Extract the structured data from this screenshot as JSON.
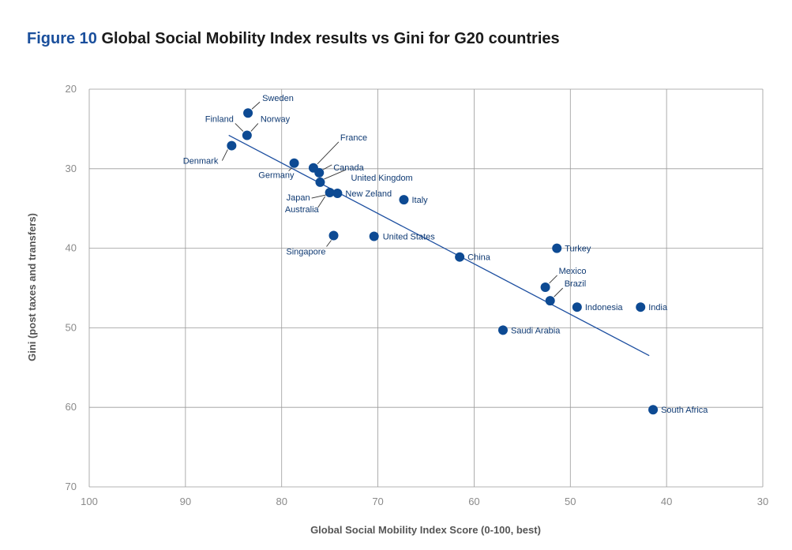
{
  "title": {
    "figure_label": "Figure 10",
    "text": "Global Social Mobility Index results vs Gini for G20 countries"
  },
  "chart_data": {
    "type": "scatter",
    "xlabel": "Global Social Mobility Index Score (0-100, best)",
    "ylabel": "Gini (post taxes and transfers)",
    "xlim": [
      100,
      30
    ],
    "ylim": [
      20,
      70
    ],
    "x_inverted": true,
    "y_inverted": true,
    "grid": true,
    "x_ticks": [
      "100",
      "90",
      "80",
      "70",
      "60",
      "50",
      "40",
      "30"
    ],
    "y_ticks": [
      "20",
      "30",
      "40",
      "50",
      "60",
      "70"
    ],
    "marker_color": "#0d4a93",
    "trendline_color": "#1d4fa0",
    "trendline": {
      "x": [
        85.5,
        41.8
      ],
      "y": [
        25.8,
        53.5
      ]
    },
    "points": [
      {
        "label": "Sweden",
        "x": 83.5,
        "y": 23.0
      },
      {
        "label": "Norway",
        "x": 83.6,
        "y": 25.8
      },
      {
        "label": "Finland",
        "x": 83.6,
        "y": 25.8
      },
      {
        "label": "Denmark",
        "x": 85.2,
        "y": 27.1
      },
      {
        "label": "Germany",
        "x": 78.7,
        "y": 29.3
      },
      {
        "label": "France",
        "x": 76.7,
        "y": 29.9
      },
      {
        "label": "Canada",
        "x": 76.1,
        "y": 30.5
      },
      {
        "label": "United Kingdom",
        "x": 76.0,
        "y": 31.7
      },
      {
        "label": "Japan",
        "x": 75.0,
        "y": 33.0
      },
      {
        "label": "Australia",
        "x": 75.0,
        "y": 33.0
      },
      {
        "label": "New Zeland",
        "x": 74.2,
        "y": 33.1
      },
      {
        "label": "Italy",
        "x": 67.3,
        "y": 33.9
      },
      {
        "label": "Singapore",
        "x": 74.6,
        "y": 38.4
      },
      {
        "label": "United States",
        "x": 70.4,
        "y": 38.5
      },
      {
        "label": "China",
        "x": 61.5,
        "y": 41.1
      },
      {
        "label": "Turkey",
        "x": 51.4,
        "y": 40.0
      },
      {
        "label": "Mexico",
        "x": 52.6,
        "y": 44.9
      },
      {
        "label": "Brazil",
        "x": 52.1,
        "y": 46.6
      },
      {
        "label": "Indonesia",
        "x": 49.3,
        "y": 47.4
      },
      {
        "label": "India",
        "x": 42.7,
        "y": 47.4
      },
      {
        "label": "Saudi Arabia",
        "x": 57.0,
        "y": 50.3
      },
      {
        "label": "South Africa",
        "x": 41.4,
        "y": 60.3
      }
    ]
  }
}
